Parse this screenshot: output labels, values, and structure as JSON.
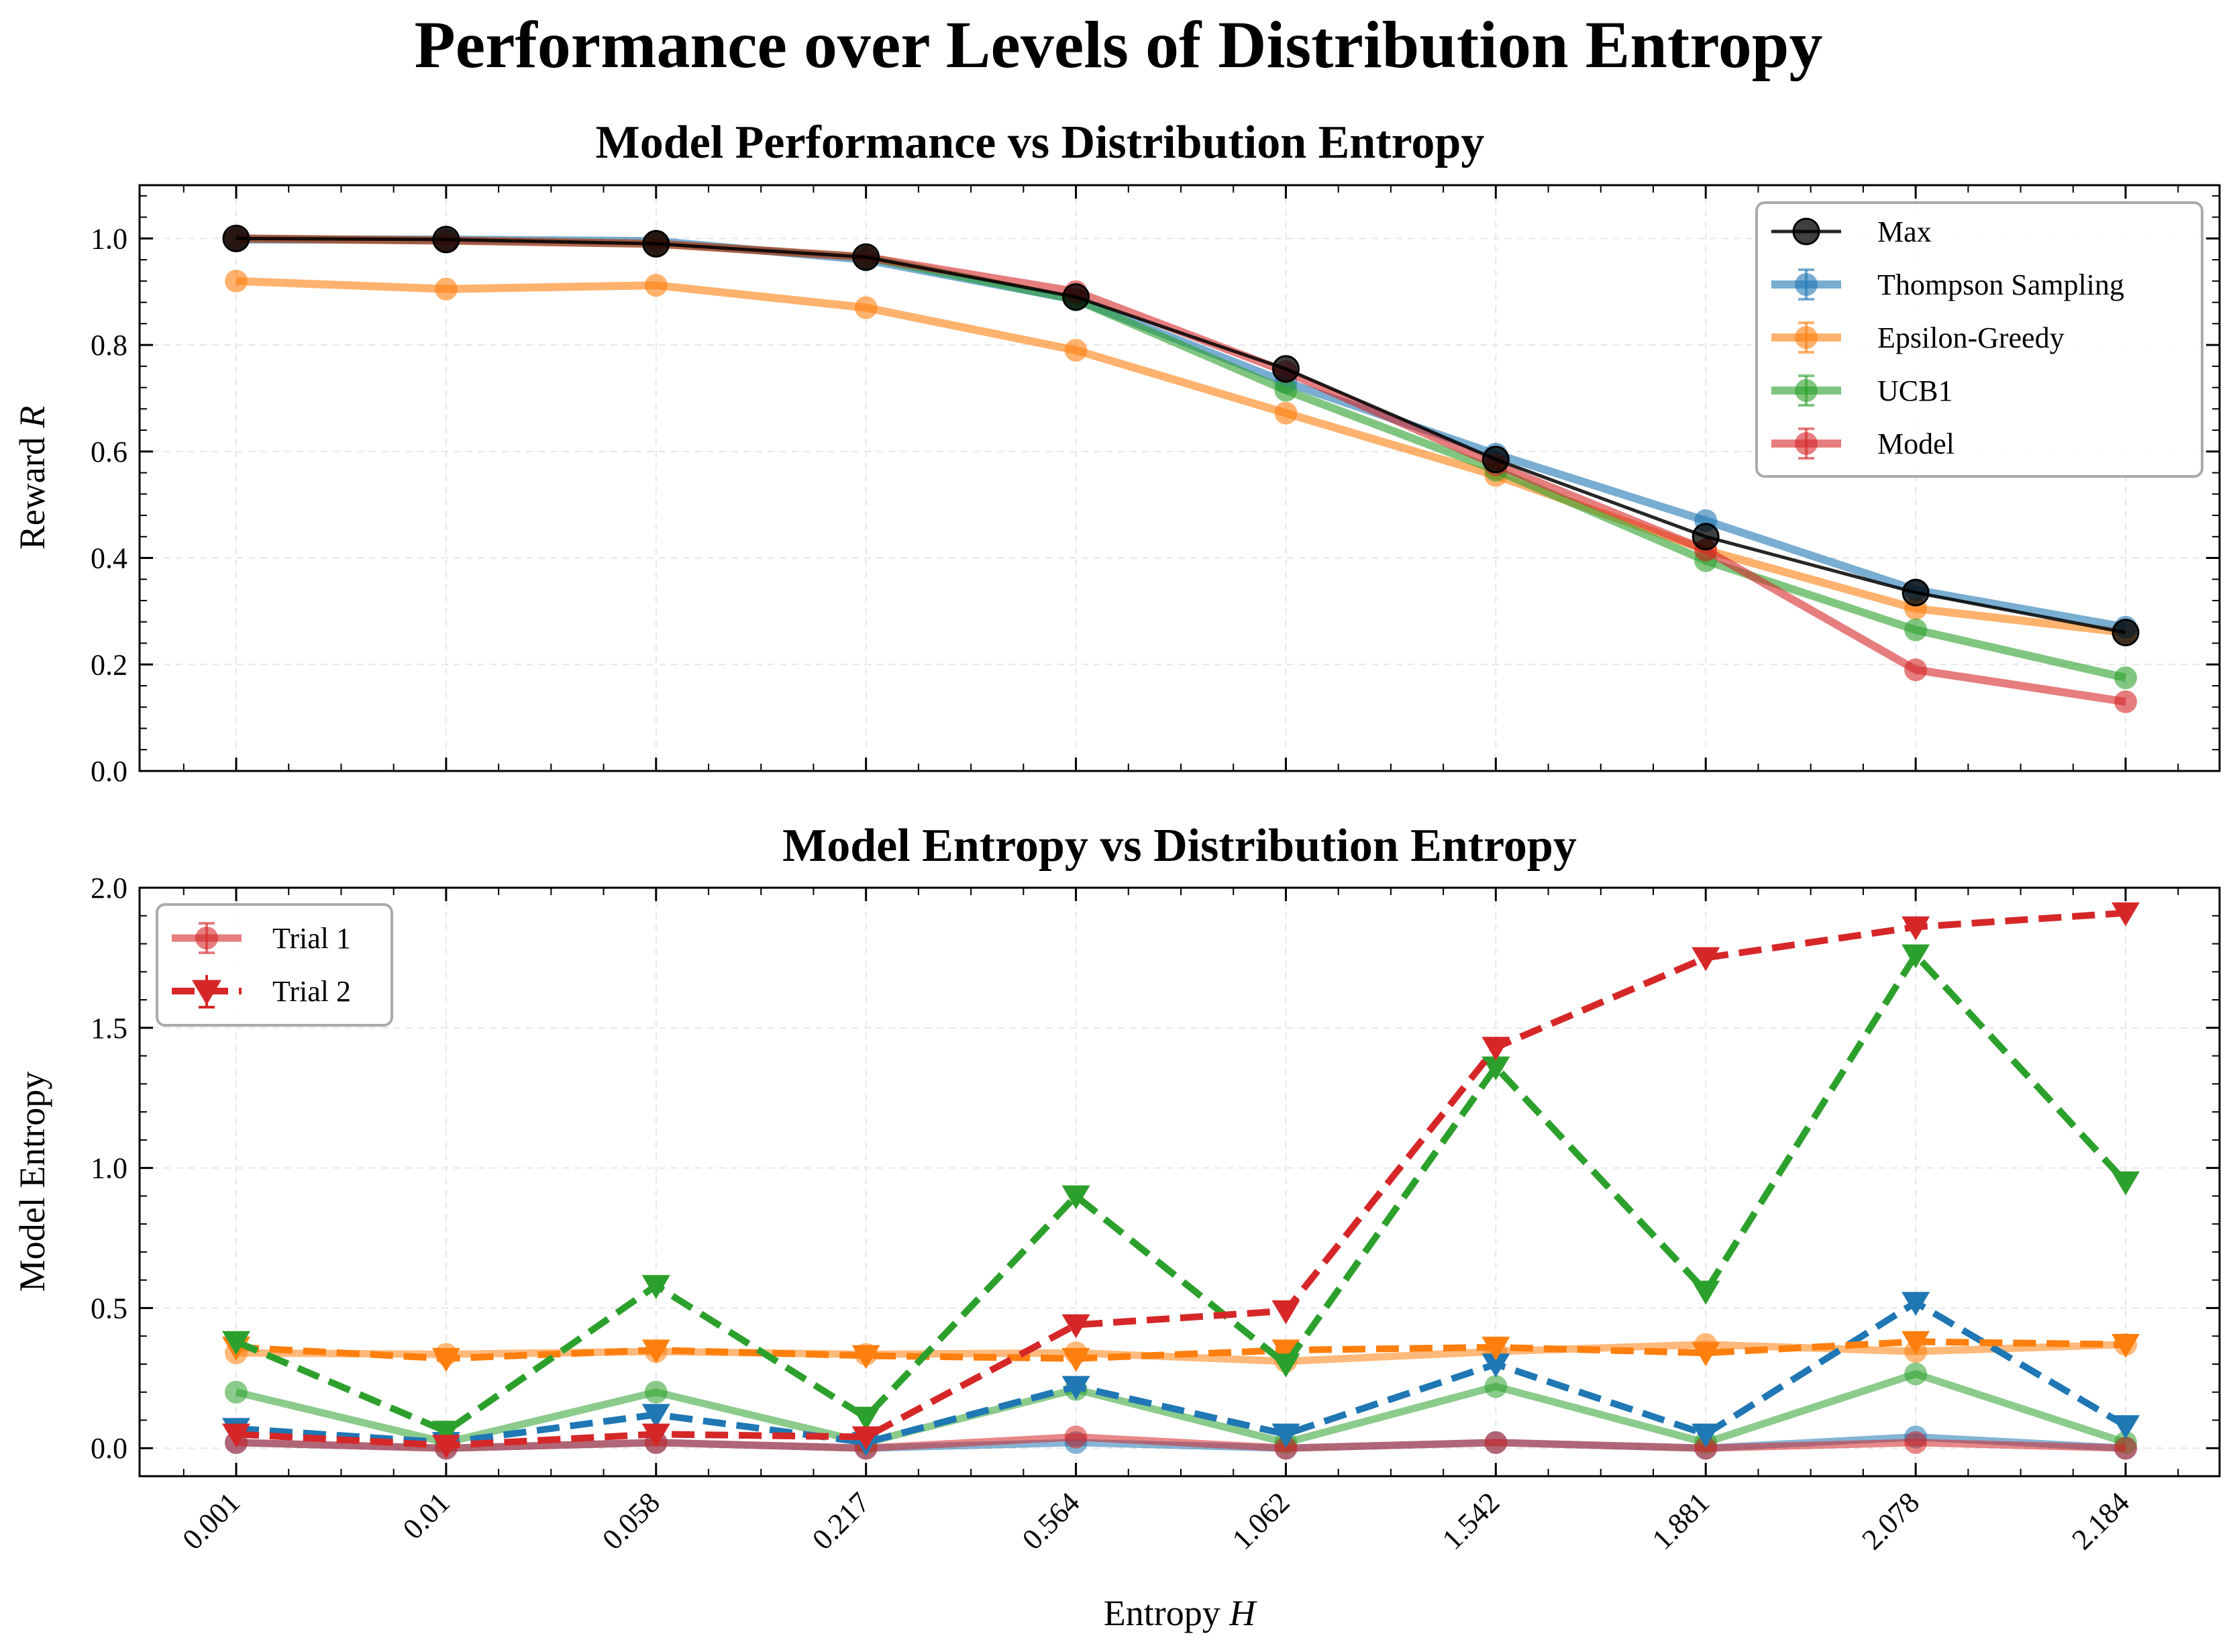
{
  "figure": {
    "suptitle": "Performance over Levels of Distribution Entropy"
  },
  "colors": {
    "Max": "#000000",
    "Thompson Sampling": "#1f77b4",
    "Epsilon-Greedy": "#ff7f0e",
    "UCB1": "#2ca02c",
    "Model": "#d62728"
  },
  "chart_data": [
    {
      "type": "line",
      "title": "Model Performance vs Distribution Entropy",
      "xlabel": "",
      "ylabel": "Reward R",
      "ylabel_main": "Reward ",
      "ylabel_italic": "R",
      "categories": [
        "0.001",
        "0.01",
        "0.058",
        "0.217",
        "0.564",
        "1.062",
        "1.542",
        "1.881",
        "2.078",
        "2.184"
      ],
      "ylim": [
        0,
        1.1
      ],
      "yticks": [
        0.0,
        0.2,
        0.4,
        0.6,
        0.8,
        1.0
      ],
      "ytick_labels": [
        "0.0",
        "0.2",
        "0.4",
        "0.6",
        "0.8",
        "1.0"
      ],
      "grid": true,
      "legend_position": "top-right",
      "series": [
        {
          "name": "Max",
          "values": [
            1.0,
            0.998,
            0.99,
            0.965,
            0.89,
            0.755,
            0.585,
            0.44,
            0.335,
            0.26
          ]
        },
        {
          "name": "Thompson Sampling",
          "values": [
            0.998,
            0.998,
            0.995,
            0.96,
            0.885,
            0.73,
            0.595,
            0.47,
            0.34,
            0.27
          ]
        },
        {
          "name": "Epsilon-Greedy",
          "values": [
            0.92,
            0.905,
            0.912,
            0.87,
            0.79,
            0.672,
            0.555,
            0.415,
            0.305,
            0.26
          ]
        },
        {
          "name": "UCB1",
          "values": [
            1.0,
            0.996,
            0.99,
            0.965,
            0.885,
            0.715,
            0.565,
            0.395,
            0.265,
            0.175
          ]
        },
        {
          "name": "Model",
          "values": [
            1.0,
            0.996,
            0.99,
            0.965,
            0.9,
            0.75,
            0.575,
            0.415,
            0.19,
            0.13
          ]
        }
      ],
      "legend": [
        "Max",
        "Thompson Sampling",
        "Epsilon-Greedy",
        "UCB1",
        "Model"
      ]
    },
    {
      "type": "line",
      "title": "Model Entropy vs Distribution Entropy",
      "xlabel": "Entropy H",
      "xlabel_main": "Entropy ",
      "xlabel_italic": "H",
      "ylabel": "Model Entropy",
      "categories": [
        "0.001",
        "0.01",
        "0.058",
        "0.217",
        "0.564",
        "1.062",
        "1.542",
        "1.881",
        "2.078",
        "2.184"
      ],
      "ylim": [
        -0.1,
        2.0
      ],
      "yticks": [
        0.0,
        0.5,
        1.0,
        1.5,
        2.0
      ],
      "ytick_labels": [
        "0.0",
        "0.5",
        "1.0",
        "1.5",
        "2.0"
      ],
      "grid": true,
      "legend_position": "top-left",
      "legend": [
        "Trial 1",
        "Trial 2"
      ],
      "series": [
        {
          "trial": "Trial 1",
          "color": "#1f77b4",
          "values": [
            0.02,
            0.0,
            0.02,
            0.0,
            0.02,
            0.0,
            0.02,
            0.0,
            0.04,
            0.0
          ]
        },
        {
          "trial": "Trial 1",
          "color": "#ff7f0e",
          "values": [
            0.34,
            0.335,
            0.345,
            0.335,
            0.34,
            0.31,
            0.345,
            0.37,
            0.345,
            0.37
          ]
        },
        {
          "trial": "Trial 1",
          "color": "#2ca02c",
          "values": [
            0.2,
            0.02,
            0.2,
            0.02,
            0.21,
            0.02,
            0.22,
            0.02,
            0.265,
            0.02
          ]
        },
        {
          "trial": "Trial 1",
          "color": "#d62728",
          "values": [
            0.02,
            0.0,
            0.02,
            0.0,
            0.04,
            0.0,
            0.02,
            0.0,
            0.02,
            0.0
          ]
        },
        {
          "trial": "Trial 2",
          "color": "#1f77b4",
          "values": [
            0.07,
            0.02,
            0.12,
            0.02,
            0.22,
            0.05,
            0.3,
            0.05,
            0.52,
            0.08
          ]
        },
        {
          "trial": "Trial 2",
          "color": "#ff7f0e",
          "values": [
            0.36,
            0.32,
            0.35,
            0.33,
            0.32,
            0.35,
            0.36,
            0.34,
            0.38,
            0.37
          ]
        },
        {
          "trial": "Trial 2",
          "color": "#2ca02c",
          "values": [
            0.38,
            0.06,
            0.58,
            0.11,
            0.9,
            0.3,
            1.36,
            0.56,
            1.76,
            0.95
          ]
        },
        {
          "trial": "Trial 2",
          "color": "#d62728",
          "values": [
            0.05,
            0.01,
            0.05,
            0.04,
            0.44,
            0.49,
            1.43,
            1.75,
            1.86,
            1.91
          ]
        }
      ]
    }
  ]
}
